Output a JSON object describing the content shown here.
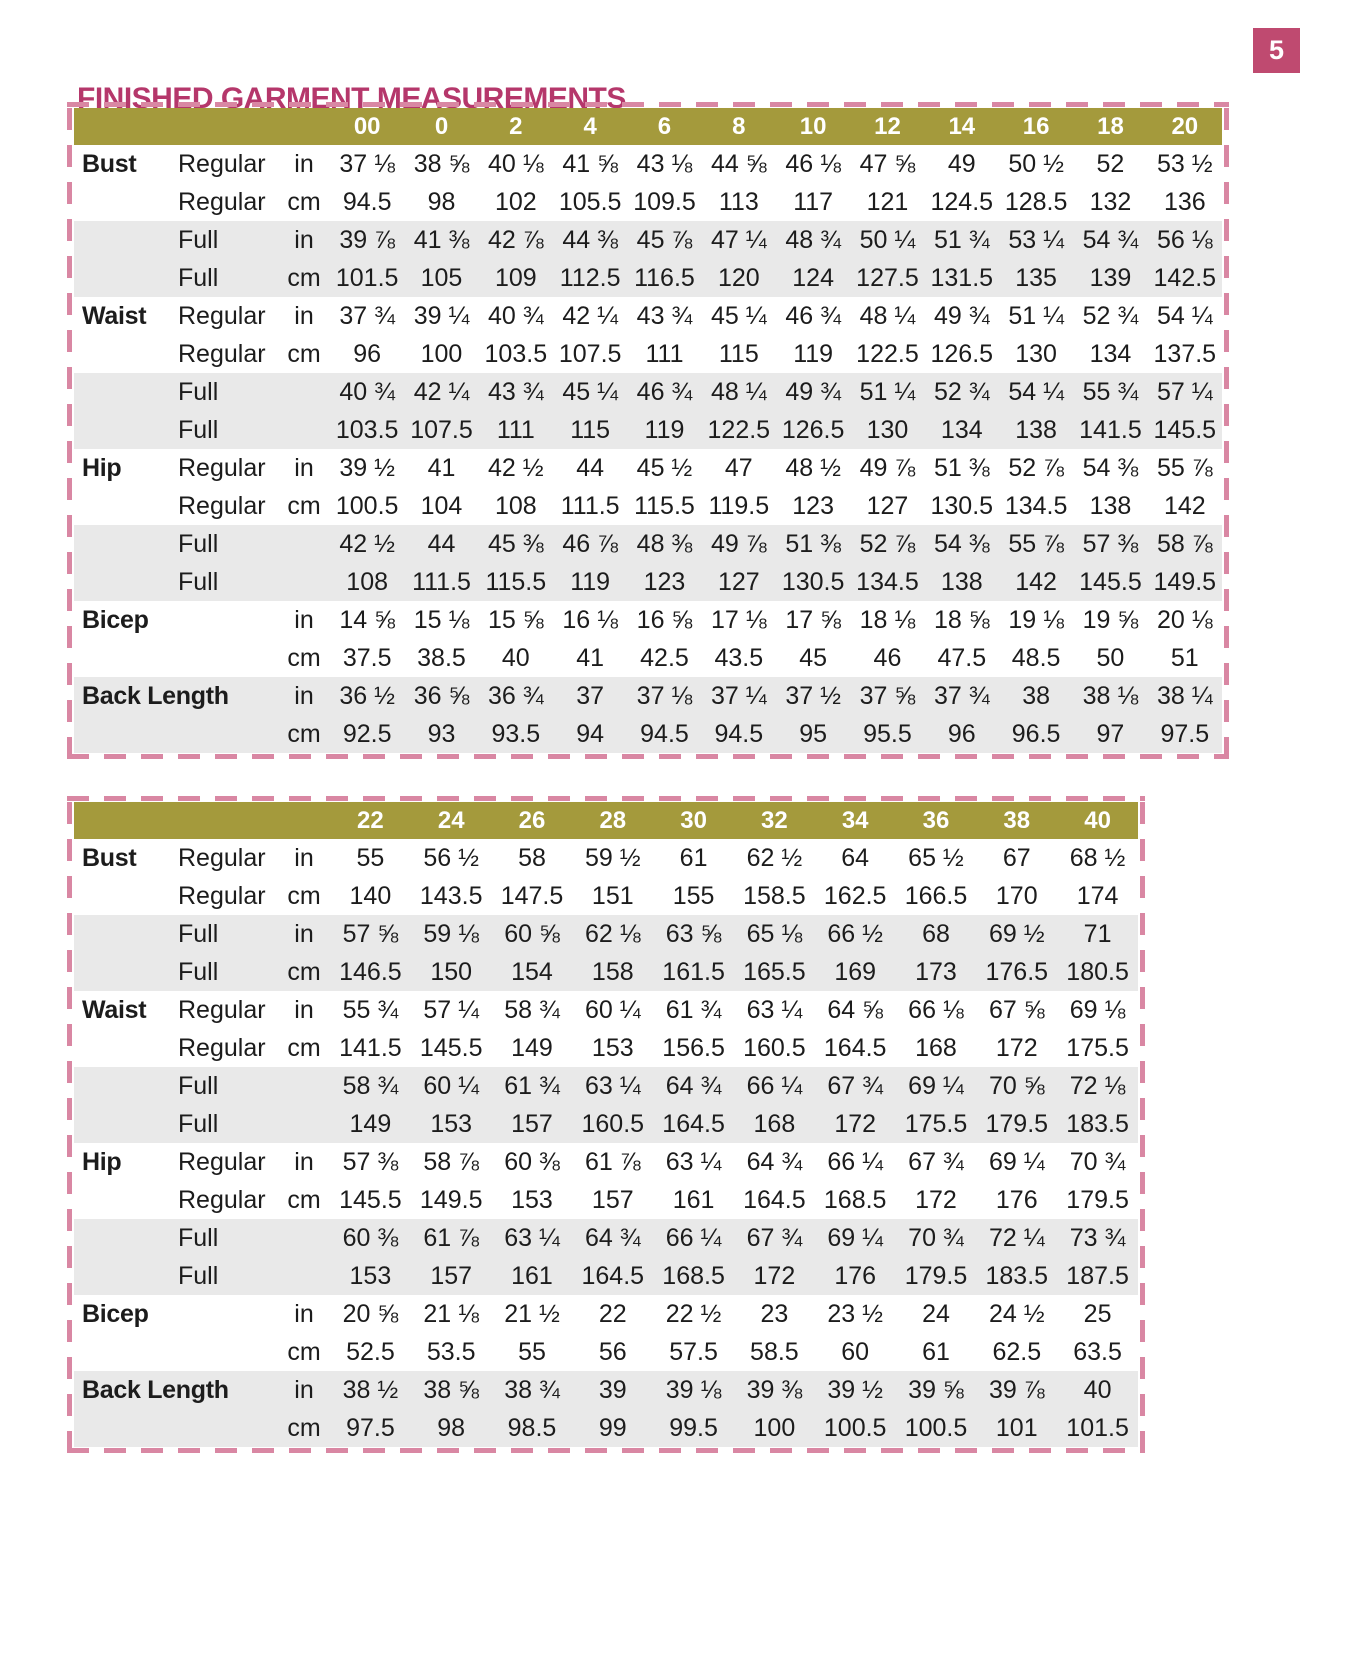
{
  "page": {
    "number": "5",
    "title": "FINISHED GARMENT MEASUREMENTS"
  },
  "colors": {
    "accent_pink": "#b5376b",
    "badge_pink": "#bf4a70",
    "header_olive": "#a49a3c",
    "row_gray": "#e9e9e9",
    "dash_pink": "#d987a3"
  },
  "tables": [
    {
      "sizes": [
        "00",
        "0",
        "2",
        "4",
        "6",
        "8",
        "10",
        "12",
        "14",
        "16",
        "18",
        "20"
      ],
      "rows": [
        {
          "label": "Bust",
          "fit": "Regular",
          "unit": "in",
          "shade": false,
          "values": [
            "37 ⅛",
            "38 ⅝",
            "40 ⅛",
            "41 ⅝",
            "43 ⅛",
            "44 ⅝",
            "46 ⅛",
            "47 ⅝",
            "49",
            "50 ½",
            "52",
            "53 ½"
          ]
        },
        {
          "label": "",
          "fit": "Regular",
          "unit": "cm",
          "shade": false,
          "values": [
            "94.5",
            "98",
            "102",
            "105.5",
            "109.5",
            "113",
            "117",
            "121",
            "124.5",
            "128.5",
            "132",
            "136"
          ]
        },
        {
          "label": "",
          "fit": "Full",
          "unit": "in",
          "shade": true,
          "values": [
            "39 ⅞",
            "41 ⅜",
            "42 ⅞",
            "44 ⅜",
            "45 ⅞",
            "47 ¼",
            "48 ¾",
            "50 ¼",
            "51 ¾",
            "53 ¼",
            "54 ¾",
            "56 ⅛"
          ]
        },
        {
          "label": "",
          "fit": "Full",
          "unit": "cm",
          "shade": true,
          "values": [
            "101.5",
            "105",
            "109",
            "112.5",
            "116.5",
            "120",
            "124",
            "127.5",
            "131.5",
            "135",
            "139",
            "142.5"
          ]
        },
        {
          "label": "Waist",
          "fit": "Regular",
          "unit": "in",
          "shade": false,
          "values": [
            "37 ¾",
            "39 ¼",
            "40 ¾",
            "42 ¼",
            "43 ¾",
            "45 ¼",
            "46 ¾",
            "48 ¼",
            "49 ¾",
            "51 ¼",
            "52 ¾",
            "54 ¼"
          ]
        },
        {
          "label": "",
          "fit": "Regular",
          "unit": "cm",
          "shade": false,
          "values": [
            "96",
            "100",
            "103.5",
            "107.5",
            "111",
            "115",
            "119",
            "122.5",
            "126.5",
            "130",
            "134",
            "137.5"
          ]
        },
        {
          "label": "",
          "fit": "Full",
          "unit": "",
          "shade": true,
          "values": [
            "40 ¾",
            "42 ¼",
            "43 ¾",
            "45 ¼",
            "46 ¾",
            "48 ¼",
            "49 ¾",
            "51 ¼",
            "52 ¾",
            "54 ¼",
            "55 ¾",
            "57 ¼"
          ]
        },
        {
          "label": "",
          "fit": "Full",
          "unit": "",
          "shade": true,
          "values": [
            "103.5",
            "107.5",
            "111",
            "115",
            "119",
            "122.5",
            "126.5",
            "130",
            "134",
            "138",
            "141.5",
            "145.5"
          ]
        },
        {
          "label": "Hip",
          "fit": "Regular",
          "unit": "in",
          "shade": false,
          "values": [
            "39 ½",
            "41",
            "42 ½",
            "44",
            "45 ½",
            "47",
            "48 ½",
            "49 ⅞",
            "51 ⅜",
            "52 ⅞",
            "54 ⅜",
            "55 ⅞"
          ]
        },
        {
          "label": "",
          "fit": "Regular",
          "unit": "cm",
          "shade": false,
          "values": [
            "100.5",
            "104",
            "108",
            "111.5",
            "115.5",
            "119.5",
            "123",
            "127",
            "130.5",
            "134.5",
            "138",
            "142"
          ]
        },
        {
          "label": "",
          "fit": "Full",
          "unit": "",
          "shade": true,
          "values": [
            "42 ½",
            "44",
            "45 ⅜",
            "46 ⅞",
            "48 ⅜",
            "49 ⅞",
            "51 ⅜",
            "52 ⅞",
            "54 ⅜",
            "55 ⅞",
            "57 ⅜",
            "58 ⅞"
          ]
        },
        {
          "label": "",
          "fit": "Full",
          "unit": "",
          "shade": true,
          "values": [
            "108",
            "111.5",
            "115.5",
            "119",
            "123",
            "127",
            "130.5",
            "134.5",
            "138",
            "142",
            "145.5",
            "149.5"
          ]
        },
        {
          "label": "Bicep",
          "fit": "",
          "unit": "in",
          "shade": false,
          "values": [
            "14 ⅝",
            "15 ⅛",
            "15 ⅝",
            "16 ⅛",
            "16 ⅝",
            "17 ⅛",
            "17 ⅝",
            "18 ⅛",
            "18 ⅝",
            "19 ⅛",
            "19 ⅝",
            "20 ⅛"
          ]
        },
        {
          "label": "",
          "fit": "",
          "unit": "cm",
          "shade": false,
          "values": [
            "37.5",
            "38.5",
            "40",
            "41",
            "42.5",
            "43.5",
            "45",
            "46",
            "47.5",
            "48.5",
            "50",
            "51"
          ]
        },
        {
          "label": "Back Length",
          "fit": "",
          "unit": "in",
          "shade": true,
          "values": [
            "36 ½",
            "36 ⅝",
            "36 ¾",
            "37",
            "37 ⅛",
            "37 ¼",
            "37 ½",
            "37 ⅝",
            "37 ¾",
            "38",
            "38 ⅛",
            "38 ¼"
          ]
        },
        {
          "label": "",
          "fit": "",
          "unit": "cm",
          "shade": true,
          "values": [
            "92.5",
            "93",
            "93.5",
            "94",
            "94.5",
            "94.5",
            "95",
            "95.5",
            "96",
            "96.5",
            "97",
            "97.5"
          ]
        }
      ]
    },
    {
      "sizes": [
        "22",
        "24",
        "26",
        "28",
        "30",
        "32",
        "34",
        "36",
        "38",
        "40"
      ],
      "rows": [
        {
          "label": "Bust",
          "fit": "Regular",
          "unit": "in",
          "shade": false,
          "values": [
            "55",
            "56 ½",
            "58",
            "59 ½",
            "61",
            "62 ½",
            "64",
            "65 ½",
            "67",
            "68 ½"
          ]
        },
        {
          "label": "",
          "fit": "Regular",
          "unit": "cm",
          "shade": false,
          "values": [
            "140",
            "143.5",
            "147.5",
            "151",
            "155",
            "158.5",
            "162.5",
            "166.5",
            "170",
            "174"
          ]
        },
        {
          "label": "",
          "fit": "Full",
          "unit": "in",
          "shade": true,
          "values": [
            "57 ⅝",
            "59 ⅛",
            "60 ⅝",
            "62 ⅛",
            "63 ⅝",
            "65 ⅛",
            "66 ½",
            "68",
            "69 ½",
            "71"
          ]
        },
        {
          "label": "",
          "fit": "Full",
          "unit": "cm",
          "shade": true,
          "values": [
            "146.5",
            "150",
            "154",
            "158",
            "161.5",
            "165.5",
            "169",
            "173",
            "176.5",
            "180.5"
          ]
        },
        {
          "label": "Waist",
          "fit": "Regular",
          "unit": "in",
          "shade": false,
          "values": [
            "55 ¾",
            "57 ¼",
            "58 ¾",
            "60 ¼",
            "61 ¾",
            "63 ¼",
            "64 ⅝",
            "66 ⅛",
            "67 ⅝",
            "69 ⅛"
          ]
        },
        {
          "label": "",
          "fit": "Regular",
          "unit": "cm",
          "shade": false,
          "values": [
            "141.5",
            "145.5",
            "149",
            "153",
            "156.5",
            "160.5",
            "164.5",
            "168",
            "172",
            "175.5"
          ]
        },
        {
          "label": "",
          "fit": "Full",
          "unit": "",
          "shade": true,
          "values": [
            "58 ¾",
            "60 ¼",
            "61 ¾",
            "63 ¼",
            "64 ¾",
            "66 ¼",
            "67 ¾",
            "69 ¼",
            "70 ⅝",
            "72 ⅛"
          ]
        },
        {
          "label": "",
          "fit": "Full",
          "unit": "",
          "shade": true,
          "values": [
            "149",
            "153",
            "157",
            "160.5",
            "164.5",
            "168",
            "172",
            "175.5",
            "179.5",
            "183.5"
          ]
        },
        {
          "label": "Hip",
          "fit": "Regular",
          "unit": "in",
          "shade": false,
          "values": [
            "57 ⅜",
            "58 ⅞",
            "60 ⅜",
            "61 ⅞",
            "63 ¼",
            "64 ¾",
            "66 ¼",
            "67 ¾",
            "69 ¼",
            "70 ¾"
          ]
        },
        {
          "label": "",
          "fit": "Regular",
          "unit": "cm",
          "shade": false,
          "values": [
            "145.5",
            "149.5",
            "153",
            "157",
            "161",
            "164.5",
            "168.5",
            "172",
            "176",
            "179.5"
          ]
        },
        {
          "label": "",
          "fit": "Full",
          "unit": "",
          "shade": true,
          "values": [
            "60 ⅜",
            "61 ⅞",
            "63 ¼",
            "64 ¾",
            "66 ¼",
            "67 ¾",
            "69 ¼",
            "70 ¾",
            "72 ¼",
            "73 ¾"
          ]
        },
        {
          "label": "",
          "fit": "Full",
          "unit": "",
          "shade": true,
          "values": [
            "153",
            "157",
            "161",
            "164.5",
            "168.5",
            "172",
            "176",
            "179.5",
            "183.5",
            "187.5"
          ]
        },
        {
          "label": "Bicep",
          "fit": "",
          "unit": "in",
          "shade": false,
          "values": [
            "20 ⅝",
            "21 ⅛",
            "21 ½",
            "22",
            "22 ½",
            "23",
            "23 ½",
            "24",
            "24 ½",
            "25"
          ]
        },
        {
          "label": "",
          "fit": "",
          "unit": "cm",
          "shade": false,
          "values": [
            "52.5",
            "53.5",
            "55",
            "56",
            "57.5",
            "58.5",
            "60",
            "61",
            "62.5",
            "63.5"
          ]
        },
        {
          "label": "Back Length",
          "fit": "",
          "unit": "in",
          "shade": true,
          "values": [
            "38 ½",
            "38 ⅝",
            "38 ¾",
            "39",
            "39 ⅛",
            "39 ⅜",
            "39 ½",
            "39 ⅝",
            "39 ⅞",
            "40"
          ]
        },
        {
          "label": "",
          "fit": "",
          "unit": "cm",
          "shade": true,
          "values": [
            "97.5",
            "98",
            "98.5",
            "99",
            "99.5",
            "100",
            "100.5",
            "100.5",
            "101",
            "101.5"
          ]
        }
      ]
    }
  ]
}
